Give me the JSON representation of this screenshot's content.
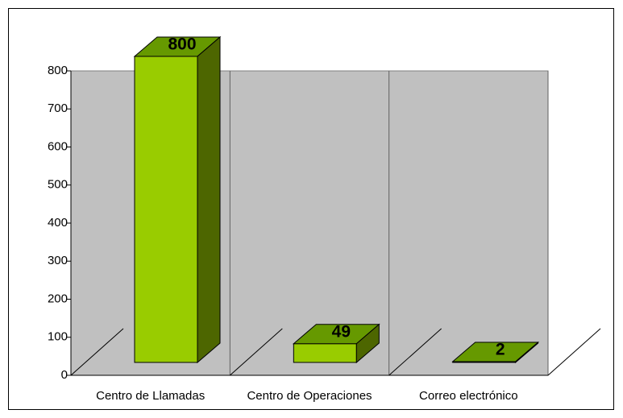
{
  "chart_data": {
    "type": "bar3d",
    "categories": [
      "Centro de Llamadas",
      "Centro de Operaciones",
      "Correo electrónico"
    ],
    "values": [
      800,
      49,
      2
    ],
    "color": "#99cc00",
    "ylim": [
      0,
      800
    ],
    "yticks": [
      0,
      100,
      200,
      300,
      400,
      500,
      600,
      700,
      800
    ],
    "grid": false
  }
}
